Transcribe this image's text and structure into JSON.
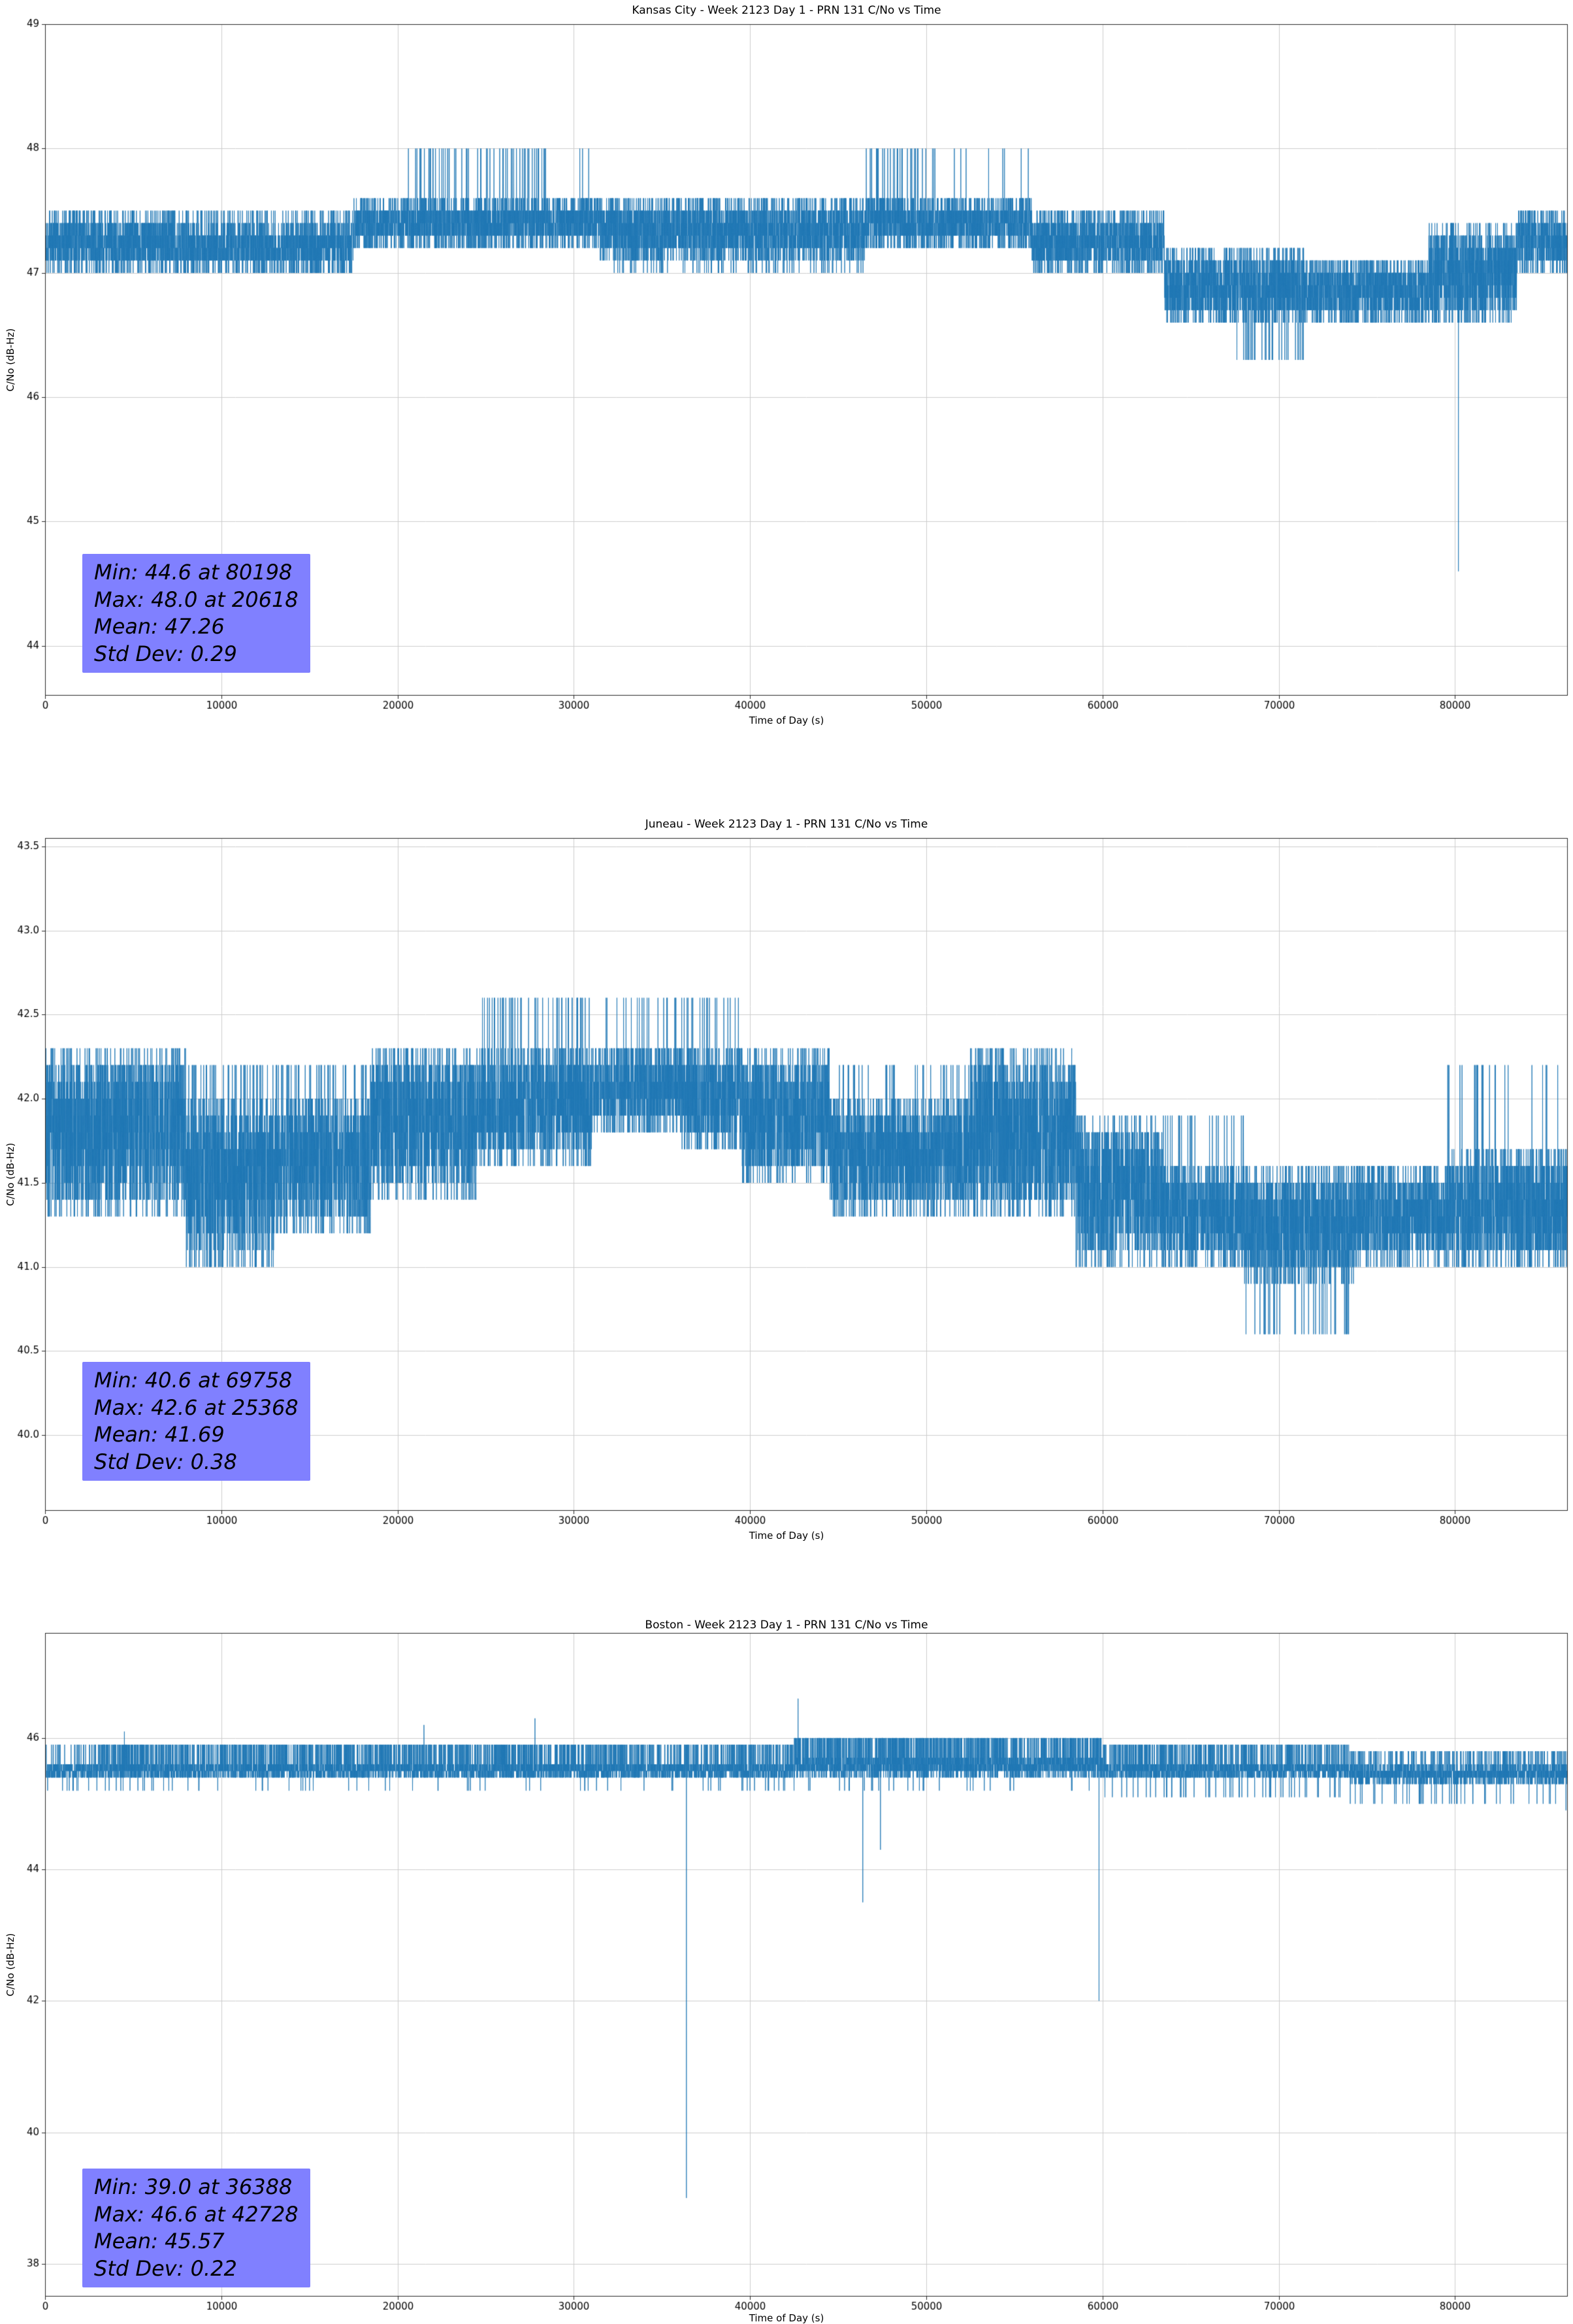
{
  "page": {
    "background": "#ffffff"
  },
  "chart_data": [
    {
      "type": "line",
      "title": "Kansas City - Week 2123 Day 1 - PRN 131 C/No vs Time",
      "xlabel": "Time of Day (s)",
      "ylabel": "C/No (dB-Hz)",
      "xlim": [
        0,
        86400
      ],
      "ylim": [
        43.6,
        49.0
      ],
      "xticks": [
        0,
        10000,
        20000,
        30000,
        40000,
        50000,
        60000,
        70000,
        80000
      ],
      "xtick_labels": [
        "0",
        "10000",
        "20000",
        "30000",
        "40000",
        "50000",
        "60000",
        "70000",
        "80000"
      ],
      "yticks": [
        44,
        45,
        46,
        47,
        48,
        49
      ],
      "ytick_labels": [
        "44",
        "45",
        "46",
        "47",
        "48",
        "49"
      ],
      "grid": true,
      "legend": false,
      "line_color": "#1f77b4",
      "stats": {
        "min": 44.6,
        "min_at": 80198,
        "max": 48.0,
        "max_at": 20618,
        "mean": 47.26,
        "std_dev": 0.29
      },
      "stats_lines": [
        "Min: 44.6 at 80198",
        "Max: 48.0 at 20618",
        "Mean: 47.26",
        "Std Dev: 0.29"
      ],
      "stats_box_color": "#8080ff",
      "series": [
        {
          "name": "C/No",
          "sample_interval_s": 6,
          "quantum": 0.1,
          "seed": 1337,
          "segments": [
            {
              "t0": 0,
              "t1": 7000,
              "lo": 47.0,
              "hi": 47.5
            },
            {
              "t0": 7000,
              "t1": 17500,
              "lo": 47.0,
              "hi": 47.4,
              "p_hi": 0.06,
              "hi2": 47.5
            },
            {
              "t0": 17500,
              "t1": 21000,
              "lo": 47.2,
              "hi": 47.6
            },
            {
              "t0": 21000,
              "t1": 28500,
              "lo": 47.2,
              "hi": 47.6,
              "p_hi": 0.05,
              "hi2": 48.0
            },
            {
              "t0": 28500,
              "t1": 31500,
              "lo": 47.2,
              "hi": 47.6,
              "p_hi": 0.02,
              "hi2": 48.0
            },
            {
              "t0": 31500,
              "t1": 46500,
              "lo": 47.1,
              "hi": 47.6,
              "p_lo": 0.04,
              "lo2": 47.0
            },
            {
              "t0": 46500,
              "t1": 50500,
              "lo": 47.2,
              "hi": 47.6,
              "p_hi": 0.05,
              "hi2": 48.0
            },
            {
              "t0": 50500,
              "t1": 56000,
              "lo": 47.2,
              "hi": 47.6,
              "p_hi": 0.01,
              "hi2": 48.0
            },
            {
              "t0": 56000,
              "t1": 63500,
              "lo": 47.0,
              "hi": 47.5
            },
            {
              "t0": 63500,
              "t1": 67500,
              "lo": 46.6,
              "hi": 47.2
            },
            {
              "t0": 67500,
              "t1": 71500,
              "lo": 46.6,
              "hi": 47.2,
              "p_lo": 0.03,
              "lo2": 46.3
            },
            {
              "t0": 71500,
              "t1": 78500,
              "lo": 46.6,
              "hi": 47.1
            },
            {
              "t0": 78500,
              "t1": 83500,
              "lo": 46.6,
              "hi": 47.4
            },
            {
              "t0": 83500,
              "t1": 86401,
              "lo": 47.0,
              "hi": 47.5
            }
          ],
          "events": [
            {
              "t": 20618,
              "v": 48.0
            },
            {
              "t": 80198,
              "v": 44.6
            }
          ]
        }
      ]
    },
    {
      "type": "line",
      "title": "Juneau - Week 2123 Day 1 - PRN 131 C/No vs Time",
      "xlabel": "Time of Day (s)",
      "ylabel": "C/No (dB-Hz)",
      "xlim": [
        0,
        86400
      ],
      "ylim": [
        39.55,
        43.55
      ],
      "xticks": [
        0,
        10000,
        20000,
        30000,
        40000,
        50000,
        60000,
        70000,
        80000
      ],
      "xtick_labels": [
        "0",
        "10000",
        "20000",
        "30000",
        "40000",
        "50000",
        "60000",
        "70000",
        "80000"
      ],
      "yticks": [
        40.0,
        40.5,
        41.0,
        41.5,
        42.0,
        42.5,
        43.0,
        43.5
      ],
      "ytick_labels": [
        "40.0",
        "40.5",
        "41.0",
        "41.5",
        "42.0",
        "42.5",
        "43.0",
        "43.5"
      ],
      "grid": true,
      "legend": false,
      "line_color": "#1f77b4",
      "stats": {
        "min": 40.6,
        "min_at": 69758,
        "max": 42.6,
        "max_at": 25368,
        "mean": 41.69,
        "std_dev": 0.38
      },
      "stats_lines": [
        "Min: 40.6 at 69758",
        "Max: 42.6 at 25368",
        "Mean: 41.69",
        "Std Dev: 0.38"
      ],
      "stats_box_color": "#8080ff",
      "series": [
        {
          "name": "C/No",
          "sample_interval_s": 6,
          "quantum": 0.1,
          "seed": 2123,
          "segments": [
            {
              "t0": 0,
              "t1": 8000,
              "lo": 41.3,
              "hi": 42.3
            },
            {
              "t0": 8000,
              "t1": 13000,
              "lo": 41.1,
              "hi": 42.0,
              "p_lo": 0.08,
              "lo2": 41.0,
              "p_hi": 0.04,
              "hi2": 42.2
            },
            {
              "t0": 13000,
              "t1": 18500,
              "lo": 41.2,
              "hi": 42.0,
              "p_hi": 0.05,
              "hi2": 42.2
            },
            {
              "t0": 18500,
              "t1": 24500,
              "lo": 41.4,
              "hi": 42.3
            },
            {
              "t0": 24500,
              "t1": 31000,
              "lo": 41.6,
              "hi": 42.3,
              "p_hi": 0.04,
              "hi2": 42.6
            },
            {
              "t0": 31000,
              "t1": 36000,
              "lo": 41.8,
              "hi": 42.3,
              "p_hi": 0.015,
              "hi2": 42.6
            },
            {
              "t0": 36000,
              "t1": 39500,
              "lo": 41.7,
              "hi": 42.3,
              "p_hi": 0.04,
              "hi2": 42.6
            },
            {
              "t0": 39500,
              "t1": 44500,
              "lo": 41.5,
              "hi": 42.3
            },
            {
              "t0": 44500,
              "t1": 52500,
              "lo": 41.3,
              "hi": 42.0,
              "p_hi": 0.03,
              "hi2": 42.2
            },
            {
              "t0": 52500,
              "t1": 58500,
              "lo": 41.3,
              "hi": 42.3
            },
            {
              "t0": 58500,
              "t1": 63500,
              "lo": 41.0,
              "hi": 41.9
            },
            {
              "t0": 63500,
              "t1": 68000,
              "lo": 41.0,
              "hi": 41.6,
              "p_hi": 0.03,
              "hi2": 41.9
            },
            {
              "t0": 68000,
              "t1": 74500,
              "lo": 40.9,
              "hi": 41.6,
              "p_lo": 0.03,
              "lo2": 40.6
            },
            {
              "t0": 74500,
              "t1": 79500,
              "lo": 41.0,
              "hi": 41.6
            },
            {
              "t0": 79500,
              "t1": 86401,
              "lo": 41.0,
              "hi": 41.7,
              "p_hi": 0.02,
              "hi2": 42.2
            }
          ],
          "events": [
            {
              "t": 25368,
              "v": 42.6
            },
            {
              "t": 69758,
              "v": 40.6
            }
          ]
        }
      ]
    },
    {
      "type": "line",
      "title": "Boston - Week 2123 Day 1 - PRN 131 C/No vs Time",
      "xlabel": "Time of Day (s)",
      "ylabel": "C/No (dB-Hz)",
      "xlim": [
        0,
        86400
      ],
      "ylim": [
        37.5,
        47.6
      ],
      "xticks": [
        0,
        10000,
        20000,
        30000,
        40000,
        50000,
        60000,
        70000,
        80000
      ],
      "xtick_labels": [
        "0",
        "10000",
        "20000",
        "30000",
        "40000",
        "50000",
        "60000",
        "70000",
        "80000"
      ],
      "yticks": [
        38,
        40,
        42,
        44,
        46
      ],
      "ytick_labels": [
        "38",
        "40",
        "42",
        "44",
        "46"
      ],
      "grid": true,
      "legend": false,
      "line_color": "#1f77b4",
      "stats": {
        "min": 39.0,
        "min_at": 36388,
        "max": 46.6,
        "max_at": 42728,
        "mean": 45.57,
        "std_dev": 0.22
      },
      "stats_lines": [
        "Min: 39.0 at 36388",
        "Max: 46.6 at 42728",
        "Mean: 45.57",
        "Std Dev: 0.22"
      ],
      "stats_box_color": "#8080ff",
      "series": [
        {
          "name": "C/No",
          "sample_interval_s": 6,
          "quantum": 0.1,
          "seed": 777,
          "segments": [
            {
              "t0": 0,
              "t1": 3000,
              "lo": 45.4,
              "hi": 45.6,
              "p_hi": 0.06,
              "hi2": 45.9,
              "p_lo": 0.02,
              "lo2": 45.2
            },
            {
              "t0": 3000,
              "t1": 33000,
              "lo": 45.4,
              "hi": 45.6,
              "p_hi": 0.18,
              "hi2": 45.9,
              "p_lo": 0.012,
              "lo2": 45.2
            },
            {
              "t0": 33000,
              "t1": 42500,
              "lo": 45.4,
              "hi": 45.6,
              "p_hi": 0.15,
              "hi2": 45.9,
              "p_lo": 0.012,
              "lo2": 45.2
            },
            {
              "t0": 42500,
              "t1": 60000,
              "lo": 45.4,
              "hi": 45.7,
              "p_hi": 0.22,
              "hi2": 46.0,
              "p_lo": 0.01,
              "lo2": 45.2
            },
            {
              "t0": 60000,
              "t1": 74000,
              "lo": 45.4,
              "hi": 45.6,
              "p_hi": 0.15,
              "hi2": 45.9,
              "p_lo": 0.02,
              "lo2": 45.1
            },
            {
              "t0": 74000,
              "t1": 86401,
              "lo": 45.3,
              "hi": 45.6,
              "p_hi": 0.1,
              "hi2": 45.8,
              "p_lo": 0.02,
              "lo2": 45.0
            }
          ],
          "events": [
            {
              "t": 4500,
              "v": 46.1
            },
            {
              "t": 21500,
              "v": 46.2
            },
            {
              "t": 27800,
              "v": 46.3
            },
            {
              "t": 36388,
              "v": 39.0
            },
            {
              "t": 42728,
              "v": 46.6
            },
            {
              "t": 46400,
              "v": 43.5
            },
            {
              "t": 47400,
              "v": 44.3
            },
            {
              "t": 59800,
              "v": 42.0
            },
            {
              "t": 86300,
              "v": 44.9
            }
          ]
        }
      ]
    }
  ]
}
